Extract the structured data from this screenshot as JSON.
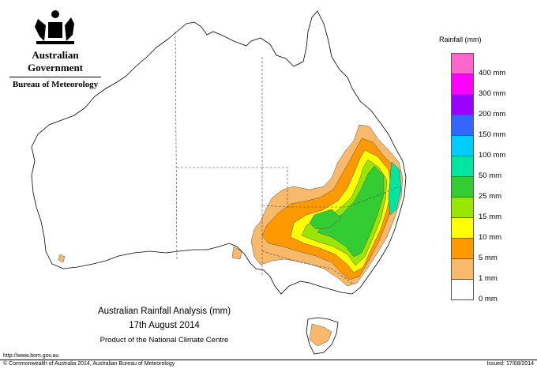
{
  "header": {
    "government": "Australian Government",
    "bureau": "Bureau of Meteorology"
  },
  "legend": {
    "title": "Rainfall (mm)",
    "items": [
      {
        "label": "",
        "color": "#ff66cc"
      },
      {
        "label": "400 mm",
        "color": "#ff00ff"
      },
      {
        "label": "300 mm",
        "color": "#9900ff"
      },
      {
        "label": "200 mm",
        "color": "#3366ff"
      },
      {
        "label": "150 mm",
        "color": "#00ccff"
      },
      {
        "label": "100 mm",
        "color": "#00e6a0"
      },
      {
        "label": "50 mm",
        "color": "#33cc33"
      },
      {
        "label": "25 mm",
        "color": "#99e600"
      },
      {
        "label": "15 mm",
        "color": "#ffff00"
      },
      {
        "label": "10 mm",
        "color": "#ff9900"
      },
      {
        "label": "5 mm",
        "color": "#f9b96b"
      },
      {
        "label": "1 mm",
        "color": "#ffffff"
      },
      {
        "label": "0 mm",
        "color": null
      }
    ]
  },
  "title": {
    "line1": "Australian Rainfall Analysis (mm)",
    "line2": "17th August 2014",
    "line3": "Product of the National Climate Centre"
  },
  "footer": {
    "url": "http://www.bom.gov.au",
    "copyright": "© Commonwealth of Australia 2014, Australian Bureau of Meteorology",
    "issued": "Issued: 17/08/2014"
  }
}
